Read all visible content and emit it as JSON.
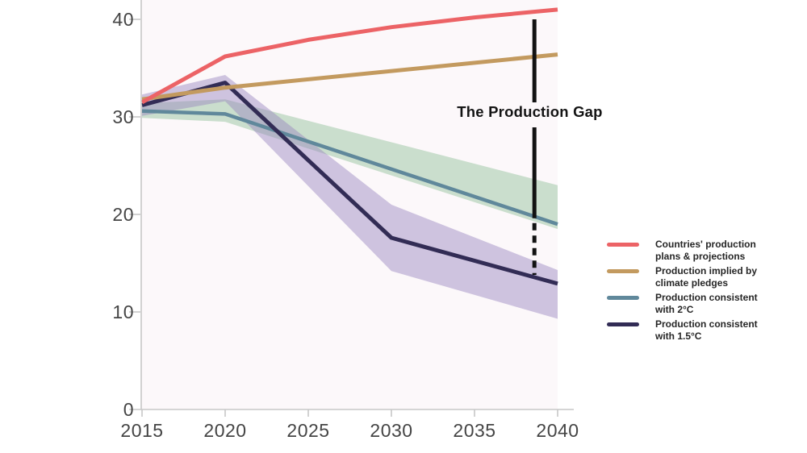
{
  "chart_data": {
    "type": "line",
    "title": "",
    "xlabel": "",
    "ylabel": "",
    "x_range": [
      2015,
      2040
    ],
    "y_range": [
      0,
      42
    ],
    "grid": false,
    "legend_position": "right",
    "x_tick_labels": [
      "2015",
      "2020",
      "2025",
      "2030",
      "2035",
      "2040"
    ],
    "y_tick_labels": [
      "40",
      "30",
      "20",
      "10",
      "0"
    ],
    "series": [
      {
        "name": "Countries' production plans & projections",
        "color": "#ec6366",
        "points": [
          [
            2015,
            31.5
          ],
          [
            2020,
            36.2
          ],
          [
            2025,
            37.9
          ],
          [
            2030,
            39.2
          ],
          [
            2035,
            40.2
          ],
          [
            2040,
            41.0
          ]
        ]
      },
      {
        "name": "Production implied by climate pledges",
        "color": "#c39a5f",
        "points": [
          [
            2015,
            31.8
          ],
          [
            2020,
            33.0
          ],
          [
            2040,
            36.4
          ]
        ]
      },
      {
        "name": "Production consistent with 2°C",
        "color": "#60889b",
        "points": [
          [
            2015,
            30.6
          ],
          [
            2020,
            30.3
          ],
          [
            2040,
            19.0
          ]
        ]
      },
      {
        "name": "Production consistent with 1.5°C",
        "color": "#322c55",
        "points": [
          [
            2015,
            31.2
          ],
          [
            2020,
            33.5
          ],
          [
            2030,
            17.6
          ],
          [
            2040,
            12.9
          ]
        ]
      }
    ],
    "bands": [
      {
        "name": "2C-uncertainty-range",
        "color": "rgba(160,200,168,0.55)",
        "top": [
          [
            2015,
            31.4
          ],
          [
            2020,
            31.8
          ],
          [
            2040,
            23.0
          ]
        ],
        "bottom": [
          [
            2015,
            29.9
          ],
          [
            2020,
            29.5
          ],
          [
            2040,
            18.5
          ]
        ]
      },
      {
        "name": "1.5C-uncertainty-range",
        "color": "rgba(150,131,190,0.45)",
        "top": [
          [
            2015,
            32.3
          ],
          [
            2020,
            34.3
          ],
          [
            2030,
            21.0
          ],
          [
            2040,
            14.3
          ]
        ],
        "bottom": [
          [
            2015,
            30.1
          ],
          [
            2020,
            31.6
          ],
          [
            2030,
            14.2
          ],
          [
            2040,
            9.3
          ]
        ]
      }
    ],
    "gap_annotation": {
      "label": "The Production Gap",
      "x_year": 2038.6,
      "from_value": 40.0,
      "solid_to_value": 19.6,
      "to_value": 13.8
    }
  },
  "axes": {
    "y_labels": [
      "40",
      "30",
      "20",
      "10",
      "0"
    ],
    "x_labels": [
      "2015",
      "2020",
      "2025",
      "2030",
      "2035",
      "2040"
    ]
  },
  "legend": {
    "items": [
      {
        "line1": "Countries' production",
        "line2": "plans & projections"
      },
      {
        "line1": "Production implied by",
        "line2": "climate pledges"
      },
      {
        "line1": "Production consistent",
        "line2": "with 2°C"
      },
      {
        "line1": "Production consistent",
        "line2": "with 1.5°C"
      }
    ]
  },
  "colors": {
    "axis": "#c7c7c7",
    "tick_label": "#454545",
    "plot_background": "#fcf8fa",
    "gap_line": "#121212",
    "legend_text": "#262626",
    "annotation_text": "#141414"
  }
}
